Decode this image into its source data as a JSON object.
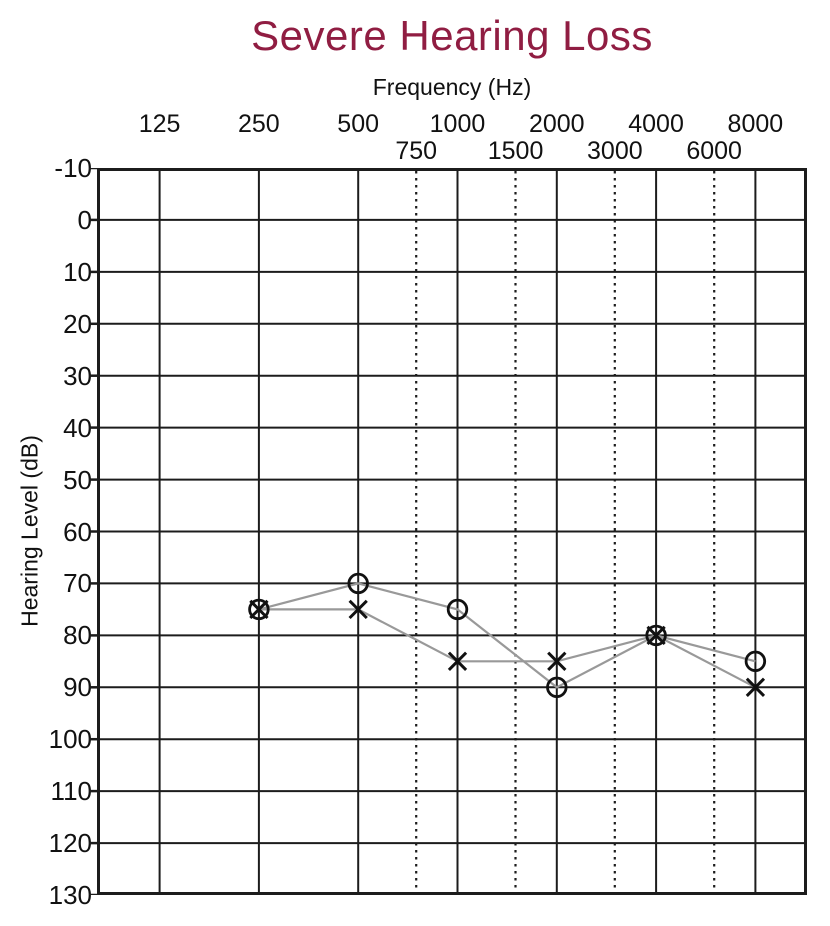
{
  "chart_data": {
    "type": "line",
    "subtype": "audiogram",
    "title": "Severe Hearing Loss",
    "xlabel": "Frequency (Hz)",
    "ylabel": "Hearing Level (dB)",
    "x_scale": "log2-octaves",
    "x_main_ticks": [
      125,
      250,
      500,
      1000,
      2000,
      4000,
      8000
    ],
    "x_secondary_ticks": [
      750,
      1500,
      3000,
      6000
    ],
    "y_ticks": [
      -10,
      0,
      10,
      20,
      30,
      40,
      50,
      60,
      70,
      80,
      90,
      100,
      110,
      120,
      130
    ],
    "ylim": [
      -10,
      130
    ],
    "grid": true,
    "legend": "none",
    "series": [
      {
        "name": "circle-marker-series",
        "marker": "circle",
        "x": [
          250,
          500,
          1000,
          2000,
          4000,
          8000
        ],
        "y": [
          75,
          70,
          75,
          90,
          80,
          85
        ]
      },
      {
        "name": "x-marker-series",
        "marker": "x",
        "x": [
          250,
          500,
          1000,
          2000,
          4000,
          8000
        ],
        "y": [
          75,
          75,
          85,
          85,
          80,
          90
        ]
      }
    ],
    "colors": {
      "title": "#901d42",
      "grid": "#1c1c1c",
      "series_line": "#999999",
      "marker": "#111111",
      "background": "#ffffff"
    }
  }
}
